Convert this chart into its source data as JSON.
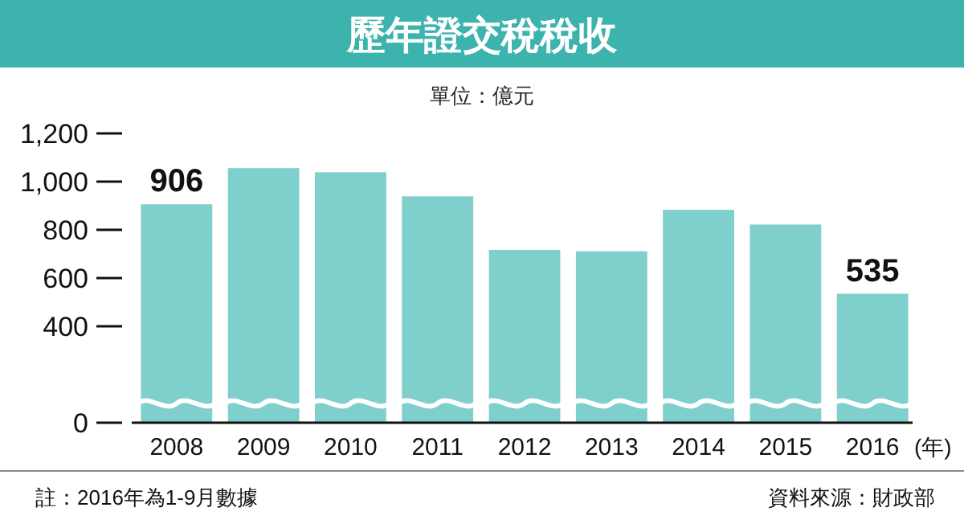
{
  "chart_data": {
    "type": "bar",
    "title": "歷年證交稅稅收",
    "subtitle": "單位：億元",
    "xlabel": "(年)",
    "categories": [
      "2008",
      "2009",
      "2010",
      "2011",
      "2012",
      "2013",
      "2014",
      "2015",
      "2016"
    ],
    "values": [
      906,
      1056,
      1039,
      939,
      717,
      711,
      883,
      822,
      535
    ],
    "value_labels": [
      "906",
      null,
      null,
      null,
      null,
      null,
      null,
      null,
      "535"
    ],
    "color": "#7fcfcc",
    "ylim": [
      0,
      1200
    ],
    "yticks": [
      0,
      400,
      600,
      800,
      {
        "value": 1000,
        "label": "1,000"
      },
      {
        "value": 1200,
        "label": "1,200"
      }
    ],
    "grid": false,
    "annotations": [
      "註：2016年為1-9月數據",
      "資料來源：財政部"
    ]
  }
}
